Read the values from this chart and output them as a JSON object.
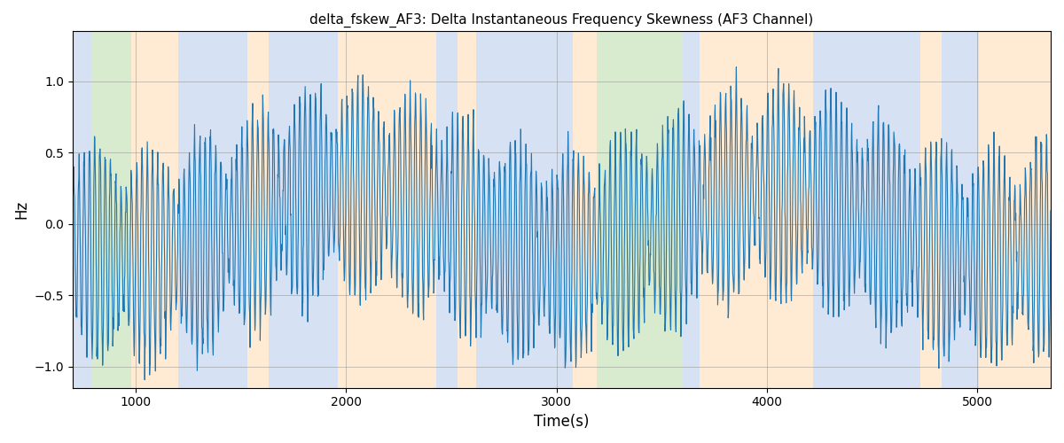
{
  "title": "delta_fskew_AF3: Delta Instantaneous Frequency Skewness (AF3 Channel)",
  "xlabel": "Time(s)",
  "ylabel": "Hz",
  "xlim": [
    700,
    5350
  ],
  "ylim": [
    -1.15,
    1.35
  ],
  "line_color": "#1f77b4",
  "line_width": 0.8,
  "grid": true,
  "background_regions": [
    {
      "xmin": 700,
      "xmax": 790,
      "color": "#aec6e8",
      "alpha": 0.5
    },
    {
      "xmin": 790,
      "xmax": 980,
      "color": "#b2d9a0",
      "alpha": 0.5
    },
    {
      "xmin": 980,
      "xmax": 1200,
      "color": "#ffd9a8",
      "alpha": 0.5
    },
    {
      "xmin": 1200,
      "xmax": 1530,
      "color": "#aec6e8",
      "alpha": 0.5
    },
    {
      "xmin": 1530,
      "xmax": 1630,
      "color": "#ffd9a8",
      "alpha": 0.5
    },
    {
      "xmin": 1630,
      "xmax": 1960,
      "color": "#aec6e8",
      "alpha": 0.5
    },
    {
      "xmin": 1960,
      "xmax": 2430,
      "color": "#ffd9a8",
      "alpha": 0.5
    },
    {
      "xmin": 2430,
      "xmax": 2530,
      "color": "#aec6e8",
      "alpha": 0.5
    },
    {
      "xmin": 2530,
      "xmax": 2620,
      "color": "#ffd9a8",
      "alpha": 0.5
    },
    {
      "xmin": 2620,
      "xmax": 3080,
      "color": "#aec6e8",
      "alpha": 0.5
    },
    {
      "xmin": 3080,
      "xmax": 3190,
      "color": "#ffd9a8",
      "alpha": 0.5
    },
    {
      "xmin": 3190,
      "xmax": 3600,
      "color": "#b2d9a0",
      "alpha": 0.5
    },
    {
      "xmin": 3600,
      "xmax": 3680,
      "color": "#aec6e8",
      "alpha": 0.5
    },
    {
      "xmin": 3680,
      "xmax": 4220,
      "color": "#ffd9a8",
      "alpha": 0.5
    },
    {
      "xmin": 4220,
      "xmax": 4730,
      "color": "#aec6e8",
      "alpha": 0.5
    },
    {
      "xmin": 4730,
      "xmax": 4830,
      "color": "#ffd9a8",
      "alpha": 0.5
    },
    {
      "xmin": 4830,
      "xmax": 5010,
      "color": "#aec6e8",
      "alpha": 0.5
    },
    {
      "xmin": 5010,
      "xmax": 5350,
      "color": "#ffd9a8",
      "alpha": 0.5
    }
  ],
  "seed": 42,
  "n_points": 3000
}
